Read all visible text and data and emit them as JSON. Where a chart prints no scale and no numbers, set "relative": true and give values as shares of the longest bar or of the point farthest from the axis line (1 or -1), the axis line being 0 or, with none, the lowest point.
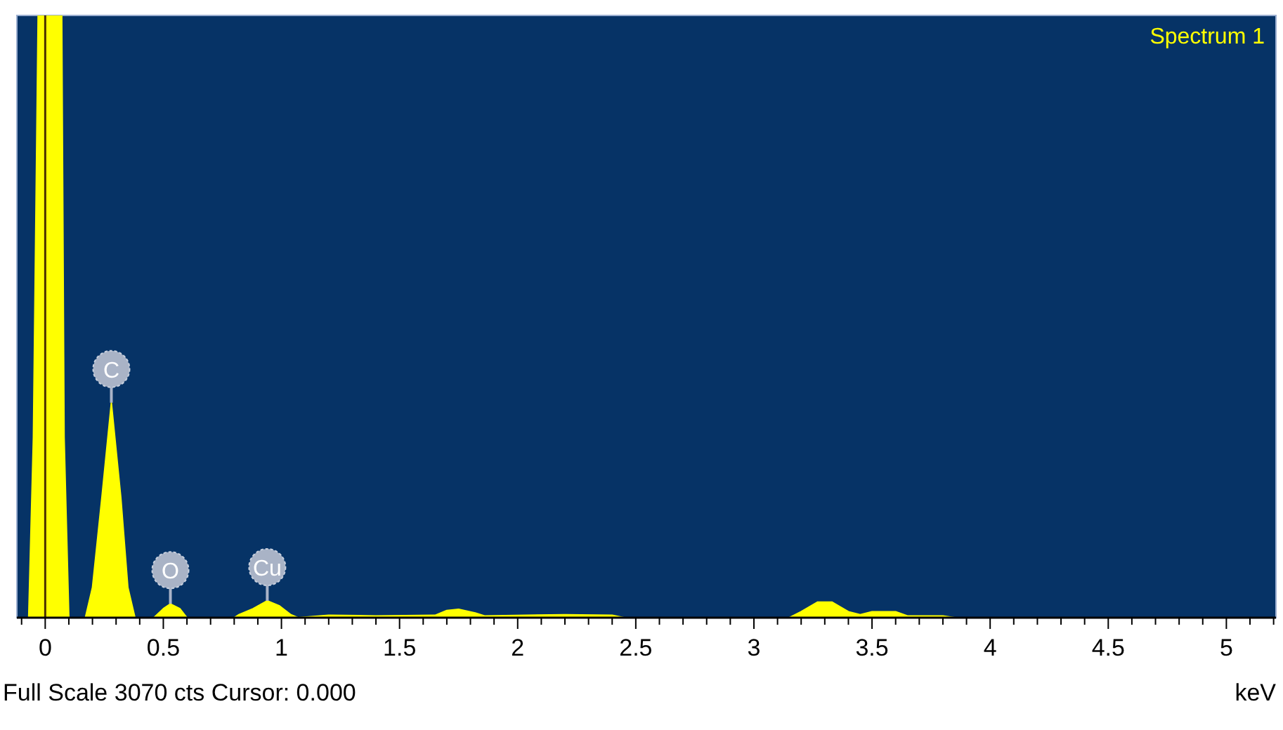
{
  "chart_data": {
    "type": "area",
    "relative": true,
    "xlabel": "keV",
    "legend": "top right",
    "xlim": [
      -0.12,
      5.21
    ],
    "xticks": [
      {
        "value": -0.1,
        "label": null
      },
      0,
      {
        "value": 0.1,
        "label": null
      },
      {
        "value": 0.2,
        "label": null
      },
      {
        "value": 0.3,
        "label": null
      },
      {
        "value": 0.4,
        "label": null
      },
      0.5,
      {
        "value": 0.6,
        "label": null
      },
      {
        "value": 0.7,
        "label": null
      },
      {
        "value": 0.8,
        "label": null
      },
      {
        "value": 0.9,
        "label": null
      },
      1,
      {
        "value": 1.1,
        "label": null
      },
      {
        "value": 1.2,
        "label": null
      },
      {
        "value": 1.3,
        "label": null
      },
      {
        "value": 1.4,
        "label": null
      },
      1.5,
      {
        "value": 1.6,
        "label": null
      },
      {
        "value": 1.7,
        "label": null
      },
      {
        "value": 1.8,
        "label": null
      },
      {
        "value": 1.9,
        "label": null
      },
      2,
      {
        "value": 2.1,
        "label": null
      },
      {
        "value": 2.2,
        "label": null
      },
      {
        "value": 2.3,
        "label": null
      },
      {
        "value": 2.4,
        "label": null
      },
      2.5,
      {
        "value": 2.6,
        "label": null
      },
      {
        "value": 2.7,
        "label": null
      },
      {
        "value": 2.8,
        "label": null
      },
      {
        "value": 2.9,
        "label": null
      },
      3,
      {
        "value": 3.1,
        "label": null
      },
      {
        "value": 3.2,
        "label": null
      },
      {
        "value": 3.3,
        "label": null
      },
      {
        "value": 3.4,
        "label": null
      },
      3.5,
      {
        "value": 3.6,
        "label": null
      },
      {
        "value": 3.7,
        "label": null
      },
      {
        "value": 3.8,
        "label": null
      },
      {
        "value": 3.9,
        "label": null
      },
      4,
      {
        "value": 4.1,
        "label": null
      },
      {
        "value": 4.2,
        "label": null
      },
      {
        "value": 4.3,
        "label": null
      },
      {
        "value": 4.4,
        "label": null
      },
      4.5,
      {
        "value": 4.6,
        "label": null
      },
      {
        "value": 4.7,
        "label": null
      },
      {
        "value": 4.8,
        "label": null
      },
      {
        "value": 4.9,
        "label": null
      },
      5,
      {
        "value": 5.1,
        "label": null
      },
      {
        "value": 5.2,
        "label": null
      }
    ],
    "series": [
      {
        "name": "Spectrum 1",
        "color": "#ffff00",
        "x": [
          -0.12,
          -0.07,
          -0.05,
          -0.03,
          0.07,
          0.08,
          0.1,
          0.17,
          0.2,
          0.24,
          0.28,
          0.32,
          0.35,
          0.38,
          0.46,
          0.5,
          0.53,
          0.57,
          0.6,
          0.8,
          0.82,
          0.88,
          0.94,
          0.99,
          1.04,
          1.07,
          1.2,
          1.4,
          1.65,
          1.7,
          1.75,
          1.82,
          1.86,
          2.2,
          2.4,
          2.45,
          3.15,
          3.2,
          3.27,
          3.33,
          3.4,
          3.45,
          3.5,
          3.6,
          3.65,
          3.8,
          3.85,
          5.21
        ],
        "values": [
          0,
          0,
          0.3,
          1,
          1,
          0.3,
          0,
          0,
          0.05,
          0.2,
          0.357,
          0.2,
          0.05,
          0,
          0,
          0.015,
          0.023,
          0.015,
          0,
          0,
          0.005,
          0.015,
          0.028,
          0.02,
          0.005,
          0,
          0.004,
          0.003,
          0.004,
          0.012,
          0.014,
          0.008,
          0.003,
          0.005,
          0.004,
          0,
          0,
          0.01,
          0.026,
          0.026,
          0.01,
          0.005,
          0.01,
          0.01,
          0.003,
          0.003,
          0,
          0
        ]
      }
    ],
    "ref_lines": [
      {
        "axis": "x",
        "value": 0,
        "color": "#4a3000"
      }
    ],
    "annotations": [
      {
        "text": "C",
        "x": 0.28,
        "y": 0.357
      },
      {
        "text": "O",
        "x": 0.53,
        "y": 0.023
      },
      {
        "text": "Cu",
        "x": 0.94,
        "y": 0.028
      },
      "Full Scale 3070 cts Cursor: 0.000"
    ]
  }
}
